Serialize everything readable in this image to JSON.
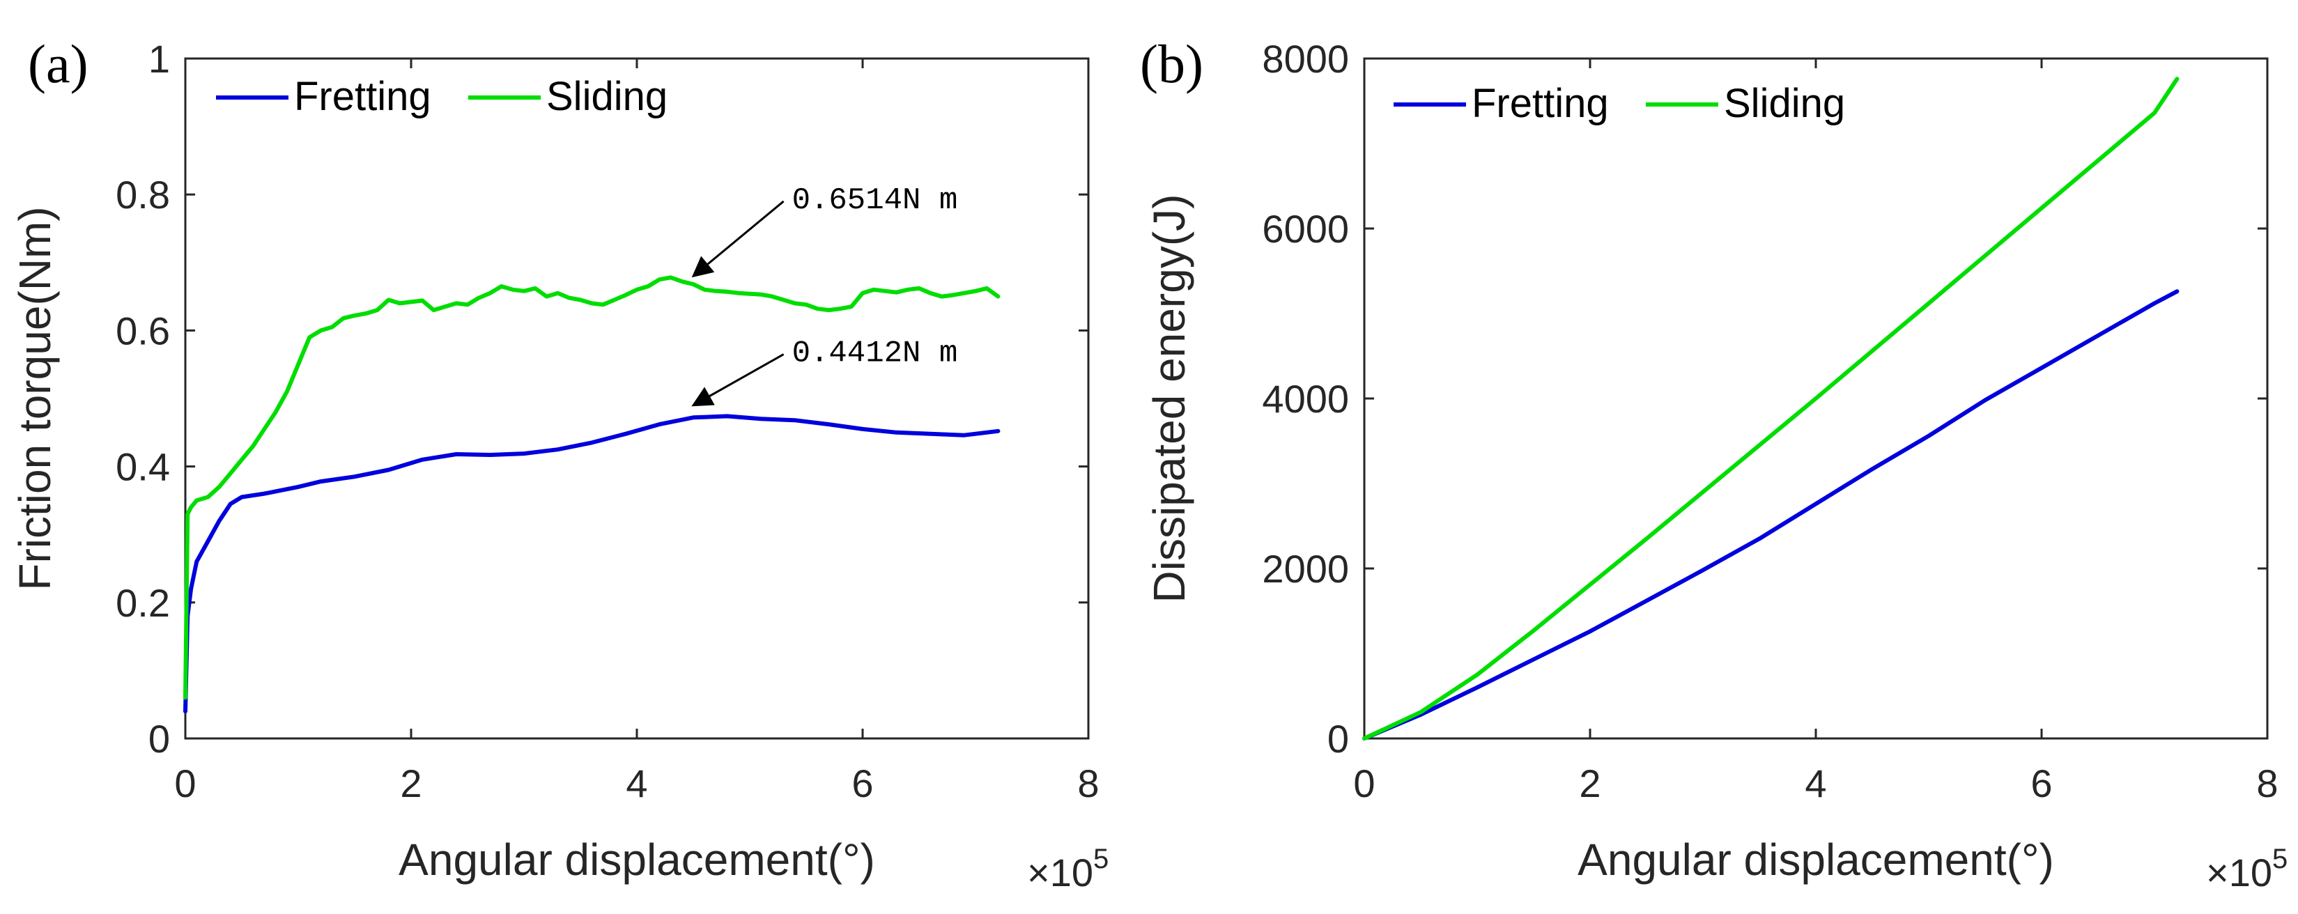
{
  "chart_data": [
    {
      "type": "line",
      "panel_label": "(a)",
      "xlabel": "Angular displacement(°)",
      "x_multiplier": {
        "base": "×10",
        "exponent": "5"
      },
      "ylabel": "Friction torque(Nm)",
      "xlim": [
        0,
        8
      ],
      "ylim": [
        0,
        1
      ],
      "xticks": [
        0,
        2,
        4,
        6,
        8
      ],
      "yticks": [
        0,
        0.2,
        0.4,
        0.6,
        0.8,
        1
      ],
      "ytick_labels": [
        "0",
        "0.2",
        "0.4",
        "0.6",
        "0.8",
        "1"
      ],
      "legend_position": "top-left",
      "series": [
        {
          "name": "Fretting",
          "color": "#0000dd",
          "x": [
            0,
            0.02,
            0.05,
            0.1,
            0.2,
            0.3,
            0.4,
            0.5,
            0.7,
            1.0,
            1.2,
            1.5,
            1.8,
            2.1,
            2.4,
            2.7,
            3.0,
            3.3,
            3.6,
            3.9,
            4.2,
            4.5,
            4.8,
            5.1,
            5.4,
            5.7,
            6.0,
            6.3,
            6.6,
            6.9,
            7.2
          ],
          "y": [
            0.04,
            0.18,
            0.22,
            0.26,
            0.29,
            0.32,
            0.345,
            0.355,
            0.36,
            0.37,
            0.378,
            0.385,
            0.395,
            0.41,
            0.418,
            0.417,
            0.419,
            0.425,
            0.435,
            0.448,
            0.462,
            0.472,
            0.474,
            0.47,
            0.468,
            0.462,
            0.455,
            0.45,
            0.448,
            0.446,
            0.452
          ]
        },
        {
          "name": "Sliding",
          "color": "#00dd00",
          "x": [
            0,
            0.02,
            0.05,
            0.1,
            0.2,
            0.3,
            0.4,
            0.5,
            0.6,
            0.7,
            0.8,
            0.9,
            1.0,
            1.1,
            1.2,
            1.3,
            1.4,
            1.5,
            1.6,
            1.7,
            1.8,
            1.9,
            2.0,
            2.1,
            2.2,
            2.3,
            2.4,
            2.5,
            2.6,
            2.7,
            2.8,
            2.9,
            3.0,
            3.1,
            3.2,
            3.3,
            3.4,
            3.5,
            3.6,
            3.7,
            3.8,
            3.9,
            4.0,
            4.1,
            4.2,
            4.3,
            4.4,
            4.5,
            4.6,
            4.7,
            4.8,
            4.9,
            5.0,
            5.1,
            5.2,
            5.3,
            5.4,
            5.5,
            5.6,
            5.7,
            5.8,
            5.9,
            6.0,
            6.1,
            6.2,
            6.3,
            6.4,
            6.5,
            6.6,
            6.7,
            6.8,
            6.9,
            7.0,
            7.1,
            7.2
          ],
          "y": [
            0.06,
            0.33,
            0.34,
            0.35,
            0.355,
            0.37,
            0.39,
            0.41,
            0.43,
            0.455,
            0.48,
            0.51,
            0.55,
            0.59,
            0.6,
            0.605,
            0.618,
            0.622,
            0.625,
            0.63,
            0.645,
            0.64,
            0.642,
            0.644,
            0.63,
            0.635,
            0.64,
            0.638,
            0.648,
            0.655,
            0.665,
            0.66,
            0.658,
            0.662,
            0.65,
            0.655,
            0.648,
            0.645,
            0.64,
            0.638,
            0.645,
            0.652,
            0.66,
            0.665,
            0.675,
            0.678,
            0.672,
            0.668,
            0.66,
            0.658,
            0.657,
            0.655,
            0.654,
            0.653,
            0.65,
            0.645,
            0.64,
            0.638,
            0.632,
            0.63,
            0.632,
            0.635,
            0.655,
            0.66,
            0.658,
            0.656,
            0.66,
            0.662,
            0.655,
            0.65,
            0.652,
            0.655,
            0.658,
            0.662,
            0.65
          ]
        }
      ],
      "annotations": [
        {
          "text": "0.6514N m",
          "target_x": 4.5,
          "target_y": 0.68,
          "from_x": 5.3,
          "from_y": 0.79
        },
        {
          "text": "0.4412N m",
          "target_x": 4.5,
          "target_y": 0.49,
          "from_x": 5.3,
          "from_y": 0.565
        }
      ]
    },
    {
      "type": "line",
      "panel_label": "(b)",
      "xlabel": "Angular displacement(°)",
      "x_multiplier": {
        "base": "×10",
        "exponent": "5"
      },
      "ylabel": "Dissipated energy(J)",
      "xlim": [
        0,
        8
      ],
      "ylim": [
        0,
        8000
      ],
      "xticks": [
        0,
        2,
        4,
        6,
        8
      ],
      "yticks": [
        0,
        2000,
        4000,
        6000,
        8000
      ],
      "ytick_labels": [
        "0",
        "2000",
        "4000",
        "6000",
        "8000"
      ],
      "legend_position": "top-left",
      "series": [
        {
          "name": "Fretting",
          "color": "#0000dd",
          "x": [
            0,
            0.5,
            1.0,
            1.5,
            2.0,
            2.5,
            3.0,
            3.5,
            4.0,
            4.5,
            5.0,
            5.5,
            6.0,
            6.5,
            7.0,
            7.2
          ],
          "y": [
            0,
            280,
            600,
            930,
            1260,
            1620,
            1980,
            2350,
            2760,
            3170,
            3560,
            3980,
            4360,
            4740,
            5120,
            5260
          ]
        },
        {
          "name": "Sliding",
          "color": "#00dd00",
          "x": [
            0,
            0.5,
            1.0,
            1.5,
            2.0,
            2.5,
            3.0,
            3.5,
            4.0,
            4.5,
            5.0,
            5.5,
            6.0,
            6.5,
            7.0,
            7.2
          ],
          "y": [
            0,
            310,
            750,
            1270,
            1810,
            2350,
            2900,
            3450,
            4000,
            4560,
            5120,
            5680,
            6240,
            6800,
            7360,
            7760
          ]
        }
      ]
    }
  ]
}
